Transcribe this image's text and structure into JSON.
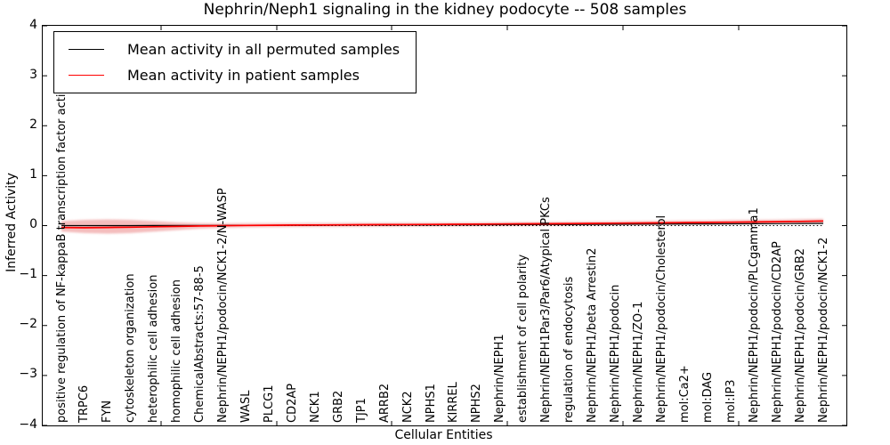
{
  "title": "Nephrin/Neph1 signaling in the kidney podocyte -- 508 samples",
  "axes": {
    "ylabel": "Inferred Activity",
    "xlabel": "Cellular Entities",
    "y_tick_labels": [
      "4",
      "3",
      "2",
      "1",
      "0",
      "−1",
      "−2",
      "−3",
      "−4"
    ],
    "ylim": [
      -4,
      4
    ]
  },
  "legend": {
    "items": [
      {
        "label": "Mean activity in all permuted samples",
        "color": "#000000"
      },
      {
        "label": "Mean activity in patient samples",
        "color": "#ff0000"
      }
    ]
  },
  "chart_data": {
    "type": "line",
    "title": "Nephrin/Neph1 signaling in the kidney podocyte -- 508 samples",
    "xlabel": "Cellular Entities",
    "ylabel": "Inferred Activity",
    "ylim": [
      -4,
      4
    ],
    "baseline": 0,
    "legend_position": "upper left",
    "grid": false,
    "categories": [
      "positive regulation of NF-kappaB transcription factor activity",
      "TRPC6",
      "FYN",
      "cytoskeleton organization",
      "heterophilic cell adhesion",
      "homophilic cell adhesion",
      "ChemicalAbstracts:57-88-5",
      "Nephrin/NEPH1/podocin/NCK1-2/N-WASP",
      "WASL",
      "PLCG1",
      "CD2AP",
      "NCK1",
      "GRB2",
      "TJP1",
      "ARRB2",
      "NCK2",
      "NPHS1",
      "KIRREL",
      "NPHS2",
      "Nephrin/NEPH1",
      "establishment of cell polarity",
      "Nephrin/NEPH1Par3/Par6/Atypical PKCs",
      "regulation of endocytosis",
      "Nephrin/NEPH1/beta Arrestin2",
      "Nephrin/NEPH1/podocin",
      "Nephrin/NEPH1/ZO-1",
      "Nephrin/NEPH1/podocin/Cholesterol",
      "mol:Ca2+",
      "mol:DAG",
      "mol:IP3",
      "Nephrin/NEPH1/podocin/PLCgamma1",
      "Nephrin/NEPH1/podocin/CD2AP",
      "Nephrin/NEPH1/podocin/GRB2",
      "Nephrin/NEPH1/podocin/NCK1-2"
    ],
    "series": [
      {
        "name": "Mean activity in all permuted samples",
        "color": "#000000",
        "style": "solid",
        "values": [
          0.0,
          0.0,
          0.0,
          0.0,
          0.001,
          0.002,
          0.003,
          0.004,
          0.005,
          0.006,
          0.007,
          0.008,
          0.009,
          0.01,
          0.011,
          0.012,
          0.013,
          0.015,
          0.016,
          0.018,
          0.019,
          0.021,
          0.022,
          0.024,
          0.026,
          0.028,
          0.03,
          0.032,
          0.034,
          0.036,
          0.038,
          0.04,
          0.042,
          0.044
        ]
      },
      {
        "name": "Mean activity in patient samples",
        "color": "#ff0000",
        "style": "solid",
        "values": [
          -0.04,
          -0.042,
          -0.038,
          -0.032,
          -0.024,
          -0.016,
          -0.008,
          -0.002,
          0.004,
          0.008,
          0.011,
          0.013,
          0.015,
          0.017,
          0.019,
          0.021,
          0.023,
          0.026,
          0.029,
          0.032,
          0.035,
          0.038,
          0.041,
          0.044,
          0.048,
          0.052,
          0.056,
          0.06,
          0.064,
          0.068,
          0.073,
          0.078,
          0.084,
          0.09
        ]
      }
    ],
    "band": {
      "name": "patient sample activity spread",
      "color": "#dd3333",
      "high": [
        0.09,
        0.115,
        0.125,
        0.115,
        0.09,
        0.065,
        0.05,
        0.045,
        0.048,
        0.05,
        0.052,
        0.053,
        0.054,
        0.055,
        0.056,
        0.057,
        0.059,
        0.061,
        0.063,
        0.066,
        0.069,
        0.072,
        0.076,
        0.08,
        0.084,
        0.089,
        0.094,
        0.099,
        0.104,
        0.11,
        0.116,
        0.122,
        0.128,
        0.135
      ],
      "low": [
        -0.12,
        -0.15,
        -0.16,
        -0.15,
        -0.12,
        -0.09,
        -0.06,
        -0.045,
        -0.036,
        -0.03,
        -0.027,
        -0.024,
        -0.022,
        -0.02,
        -0.018,
        -0.016,
        -0.014,
        -0.011,
        -0.008,
        -0.005,
        -0.002,
        0.001,
        0.004,
        0.008,
        0.012,
        0.016,
        0.02,
        0.024,
        0.029,
        0.034,
        0.039,
        0.044,
        0.049,
        0.055
      ]
    }
  }
}
